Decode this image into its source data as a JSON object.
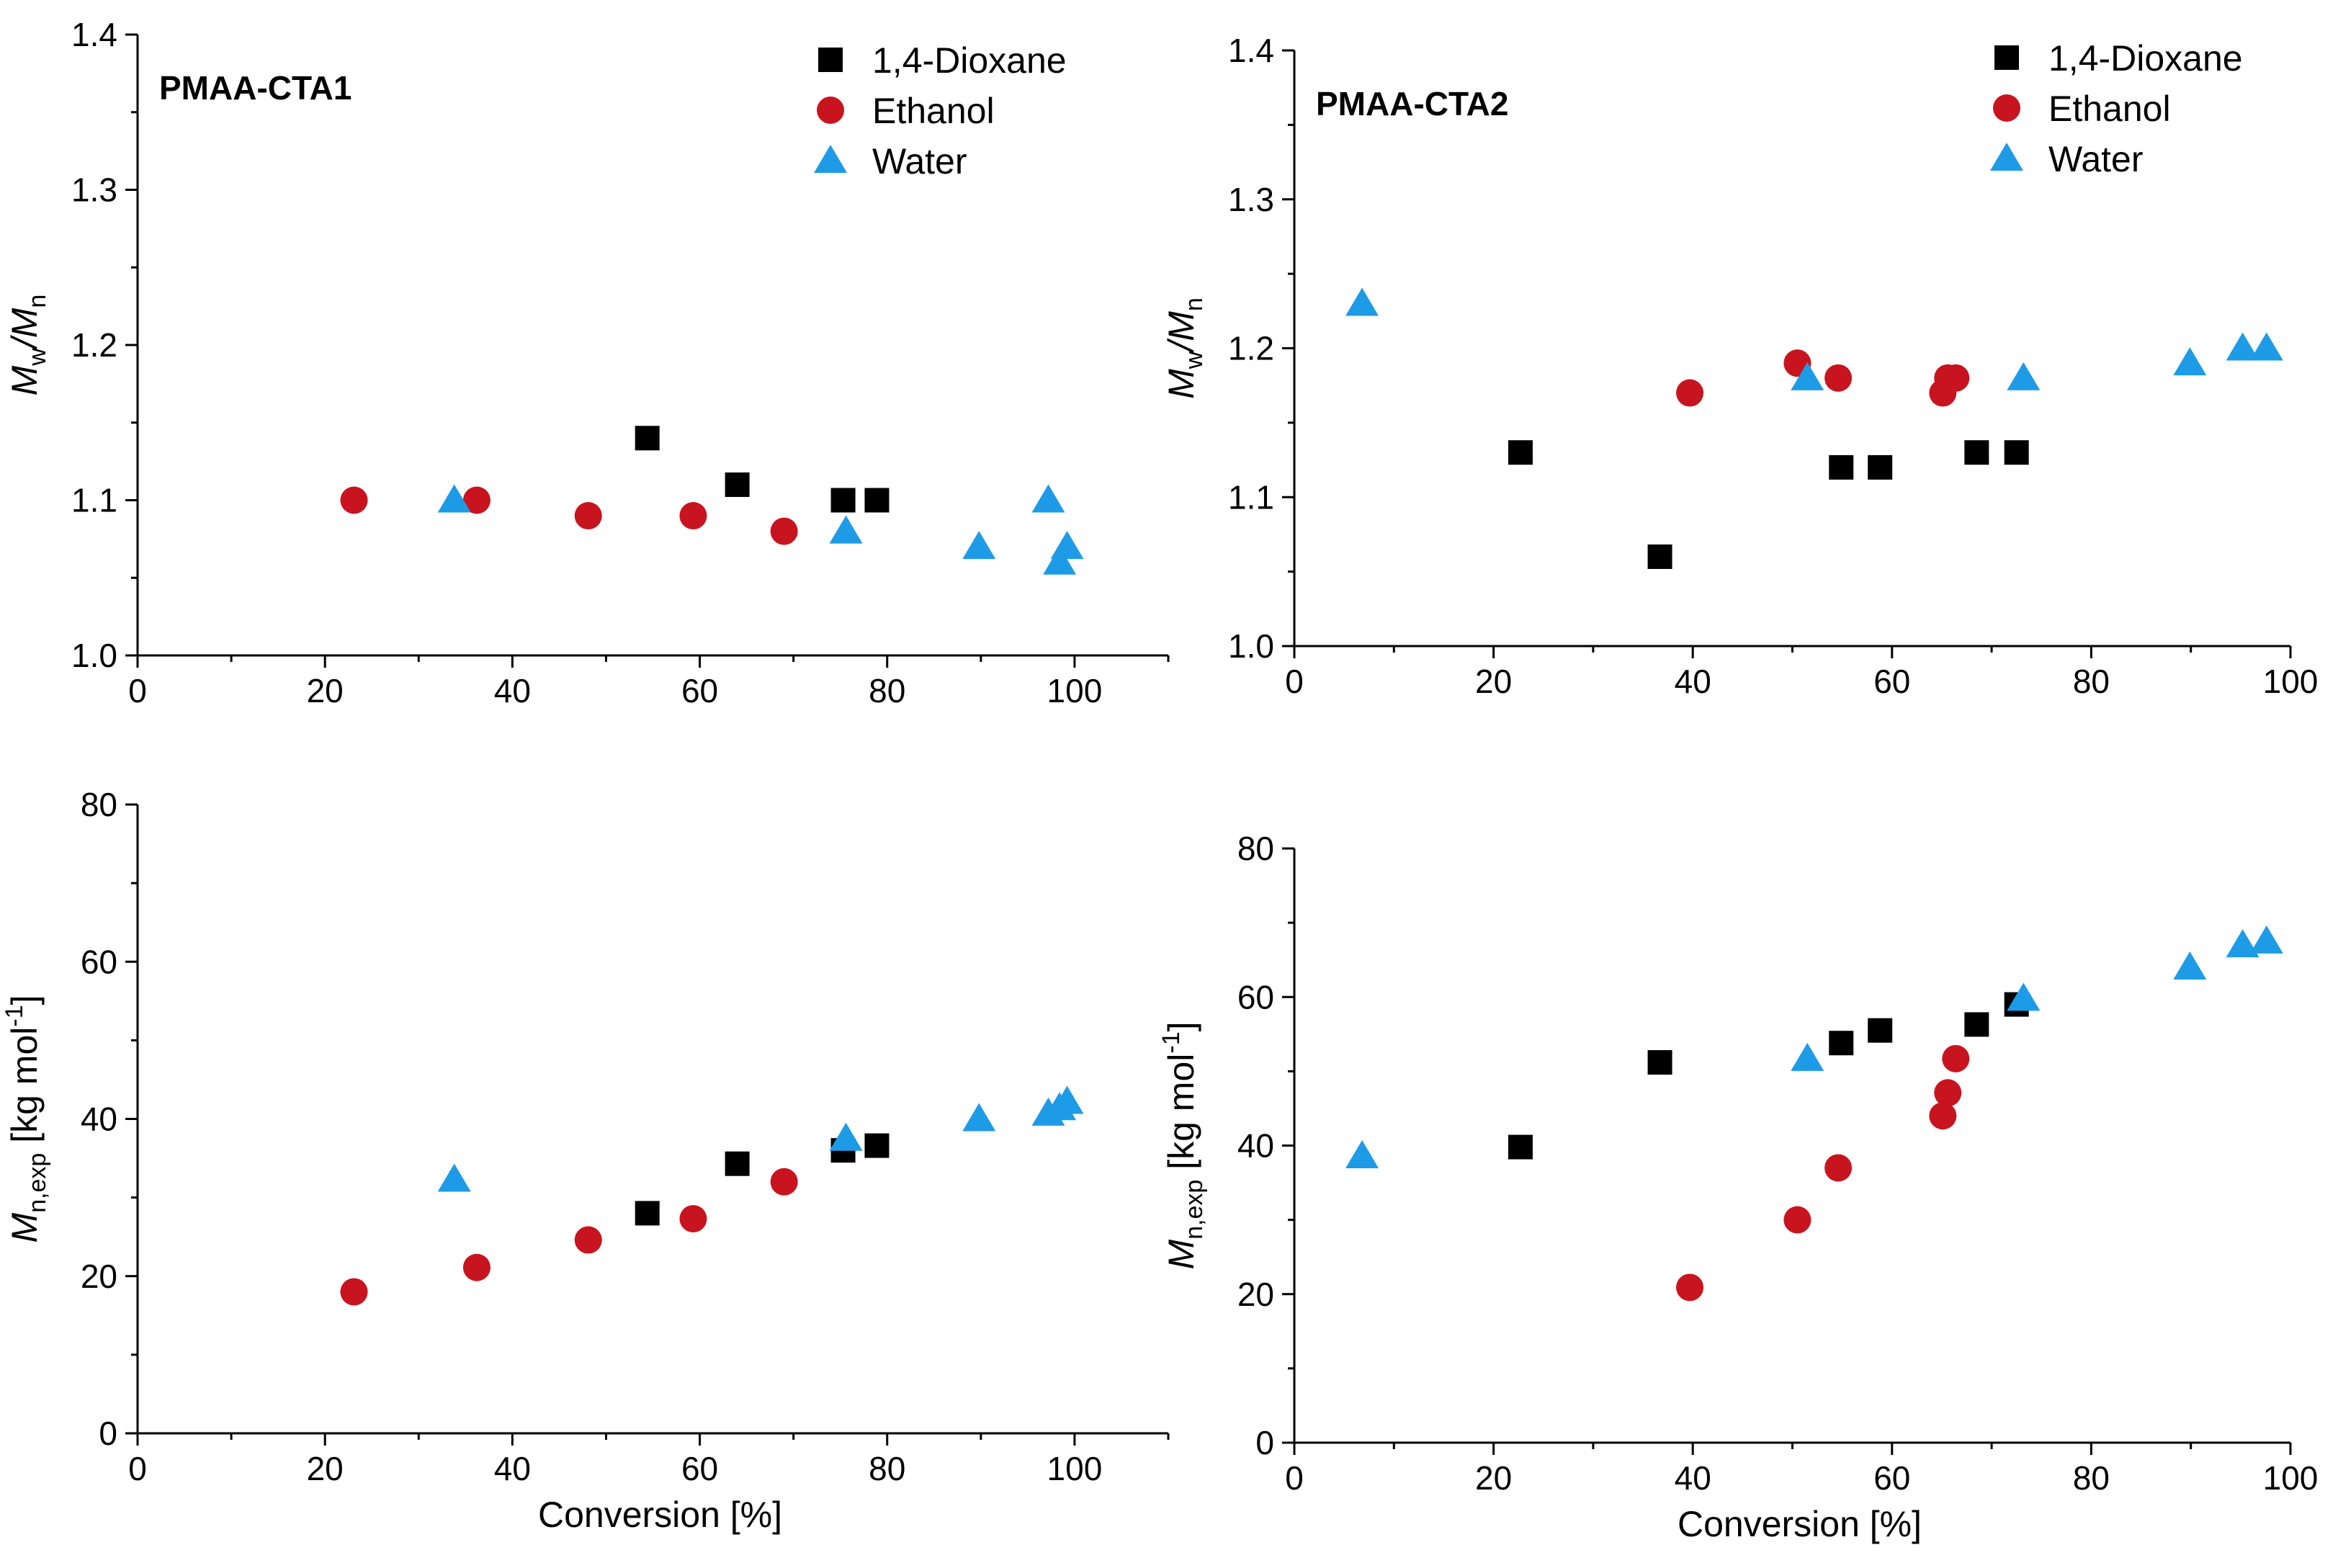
{
  "colors": {
    "dioxane": "#000000",
    "ethanol": "#c8141e",
    "water": "#1e9be6"
  },
  "chart_data": [
    {
      "type": "scatter",
      "panel": "top-left",
      "title": "PMAA-CTA1",
      "xlabel": "",
      "ylabel": {
        "main": "M",
        "sub1": "w",
        "mid": "/M",
        "sub2": "n"
      },
      "xlim": [
        0,
        110
      ],
      "ylim": [
        1.0,
        1.4
      ],
      "xticks": [
        0,
        20,
        40,
        60,
        80,
        100
      ],
      "yticks": [
        1.0,
        1.1,
        1.2,
        1.3,
        1.4
      ],
      "xtick_labels": [
        "0",
        "20",
        "40",
        "60",
        "80",
        "100"
      ],
      "ytick_labels": [
        "1.0",
        "1.1",
        "1.2",
        "1.3",
        "1.4"
      ],
      "xminor": 10,
      "yminor": 0.05,
      "legend": {
        "position": "top-right",
        "labels": [
          "1,4-Dioxane",
          "Ethanol",
          "Water"
        ]
      },
      "series": [
        {
          "name": "1,4-Dioxane",
          "marker": "square",
          "x": [
            54.4,
            64,
            75.3,
            78.9
          ],
          "y": [
            1.14,
            1.11,
            1.1,
            1.1
          ]
        },
        {
          "name": "Ethanol",
          "marker": "circle",
          "x": [
            23.1,
            36.2,
            48.1,
            59.3,
            69
          ],
          "y": [
            1.1,
            1.1,
            1.09,
            1.09,
            1.08
          ]
        },
        {
          "name": "Water",
          "marker": "triangle",
          "x": [
            33.8,
            75.6,
            89.8,
            97.2,
            98.4,
            99.2
          ],
          "y": [
            1.1,
            1.08,
            1.07,
            1.1,
            1.06,
            1.07
          ]
        }
      ]
    },
    {
      "type": "scatter",
      "panel": "top-right",
      "title": "PMAA-CTA2",
      "xlabel": "",
      "ylabel": {
        "main": "M",
        "sub1": "w",
        "mid": "/M",
        "sub2": "n"
      },
      "xlim": [
        0,
        100
      ],
      "ylim": [
        1.0,
        1.4
      ],
      "xticks": [
        0,
        20,
        40,
        60,
        80,
        100
      ],
      "yticks": [
        1.0,
        1.1,
        1.2,
        1.3,
        1.4
      ],
      "xtick_labels": [
        "0",
        "20",
        "40",
        "60",
        "80",
        "100"
      ],
      "ytick_labels": [
        "1.0",
        "1.1",
        "1.2",
        "1.3",
        "1.4"
      ],
      "xminor": 10,
      "yminor": 0.05,
      "legend": {
        "position": "top-right",
        "labels": [
          "1,4-Dioxane",
          "Ethanol",
          "Water"
        ]
      },
      "series": [
        {
          "name": "1,4-Dioxane",
          "marker": "square",
          "x": [
            22.7,
            36.7,
            54.9,
            58.8,
            68.5,
            72.5
          ],
          "y": [
            1.13,
            1.06,
            1.12,
            1.12,
            1.13,
            1.13
          ]
        },
        {
          "name": "Ethanol",
          "marker": "circle",
          "x": [
            39.7,
            50.5,
            54.6,
            65.1,
            65.6,
            66.4
          ],
          "y": [
            1.17,
            1.19,
            1.18,
            1.17,
            1.18,
            1.18
          ]
        },
        {
          "name": "Water",
          "marker": "triangle",
          "x": [
            6.8,
            51.5,
            73.2,
            89.9,
            95.2,
            97.6
          ],
          "y": [
            1.23,
            1.18,
            1.18,
            1.19,
            1.2,
            1.2
          ]
        }
      ]
    },
    {
      "type": "scatter",
      "panel": "bottom-left",
      "title": "",
      "xlabel": "Conversion [%]",
      "ylabel": {
        "main": "M",
        "sub": "n,exp",
        "unit": " [kg mol",
        "sup": "-1",
        "close": "]"
      },
      "xlim": [
        0,
        110
      ],
      "ylim": [
        0,
        80
      ],
      "xticks": [
        0,
        20,
        40,
        60,
        80,
        100
      ],
      "yticks": [
        0,
        20,
        40,
        60,
        80
      ],
      "xtick_labels": [
        "0",
        "20",
        "40",
        "60",
        "80",
        "100"
      ],
      "ytick_labels": [
        "0",
        "20",
        "40",
        "60",
        "80"
      ],
      "xminor": 10,
      "yminor": 10,
      "series": [
        {
          "name": "1,4-Dioxane",
          "marker": "square",
          "x": [
            54.4,
            64,
            75.3,
            78.9
          ],
          "y": [
            28,
            34.3,
            36,
            36.6
          ]
        },
        {
          "name": "Ethanol",
          "marker": "circle",
          "x": [
            23.1,
            36.2,
            48.1,
            59.3,
            69
          ],
          "y": [
            18,
            21.1,
            24.6,
            27.3,
            32
          ]
        },
        {
          "name": "Water",
          "marker": "triangle",
          "x": [
            33.8,
            75.6,
            89.8,
            97.2,
            98.4,
            99.2
          ],
          "y": [
            32.3,
            37.5,
            40,
            40.7,
            41.4,
            42.2
          ]
        }
      ]
    },
    {
      "type": "scatter",
      "panel": "bottom-right",
      "title": "",
      "xlabel": "Conversion [%]",
      "ylabel": {
        "main": "M",
        "sub": "n,exp",
        "unit": " [kg mol",
        "sup": "-1",
        "close": "]"
      },
      "xlim": [
        0,
        100
      ],
      "ylim": [
        0,
        80
      ],
      "xticks": [
        0,
        20,
        40,
        60,
        80,
        100
      ],
      "yticks": [
        0,
        20,
        40,
        60,
        80
      ],
      "xtick_labels": [
        "0",
        "20",
        "40",
        "60",
        "80",
        "100"
      ],
      "ytick_labels": [
        "0",
        "20",
        "40",
        "60",
        "80"
      ],
      "xminor": 10,
      "yminor": 10,
      "series": [
        {
          "name": "1,4-Dioxane",
          "marker": "square",
          "x": [
            22.7,
            36.7,
            54.9,
            58.8,
            68.5,
            72.5
          ],
          "y": [
            39.8,
            51.2,
            53.8,
            55.5,
            56.3,
            59
          ]
        },
        {
          "name": "Ethanol",
          "marker": "circle",
          "x": [
            39.7,
            50.5,
            54.6,
            65.1,
            65.6,
            66.4
          ],
          "y": [
            20.9,
            30,
            37,
            44,
            47.1,
            51.7
          ]
        },
        {
          "name": "Water",
          "marker": "triangle",
          "x": [
            6.8,
            51.5,
            73.2,
            89.9,
            95.2,
            97.6
          ],
          "y": [
            38.6,
            51.7,
            59.8,
            64,
            67,
            67.5
          ]
        }
      ]
    }
  ]
}
